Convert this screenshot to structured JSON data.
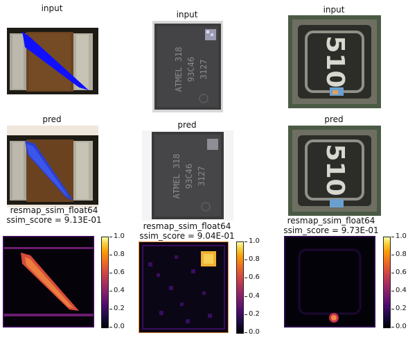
{
  "chart_data": [
    {
      "type": "heatmap",
      "row": "input",
      "title": "input"
    },
    {
      "type": "heatmap",
      "row": "input",
      "title": "input"
    },
    {
      "type": "heatmap",
      "row": "input",
      "title": "input"
    },
    {
      "type": "heatmap",
      "row": "pred",
      "title": "pred"
    },
    {
      "type": "heatmap",
      "row": "pred",
      "title": "pred"
    },
    {
      "type": "heatmap",
      "row": "pred",
      "title": "pred"
    },
    {
      "type": "heatmap",
      "row": "resmap",
      "title": "resmap_ssim_float64",
      "subtitle": "ssim_score = 9.13E-01",
      "colorbar": {
        "range": [
          0.0,
          1.0
        ],
        "ticks": [
          "0.0",
          "0.2",
          "0.4",
          "0.6",
          "0.8",
          "1.0"
        ],
        "colormap": "inferno"
      }
    },
    {
      "type": "heatmap",
      "row": "resmap",
      "title": "resmap_ssim_float64",
      "subtitle": "ssim_score = 9.04E-01",
      "colorbar": {
        "range": [
          0.0,
          1.0
        ],
        "ticks": [
          "0.0",
          "0.2",
          "0.4",
          "0.6",
          "0.8",
          "1.0"
        ],
        "colormap": "inferno"
      }
    },
    {
      "type": "heatmap",
      "row": "resmap",
      "title": "resmap_ssim_float64",
      "subtitle": "ssim_score = 9.73E-01",
      "colorbar": {
        "range": [
          0.0,
          1.0
        ],
        "ticks": [
          "0.0",
          "0.2",
          "0.4",
          "0.6",
          "0.8",
          "1.0"
        ],
        "colormap": "inferno"
      }
    }
  ],
  "chip_text": {
    "marking_1": "ATMEL 318",
    "marking_2": "93C46",
    "marking_3": "3127",
    "component_code": "510"
  }
}
